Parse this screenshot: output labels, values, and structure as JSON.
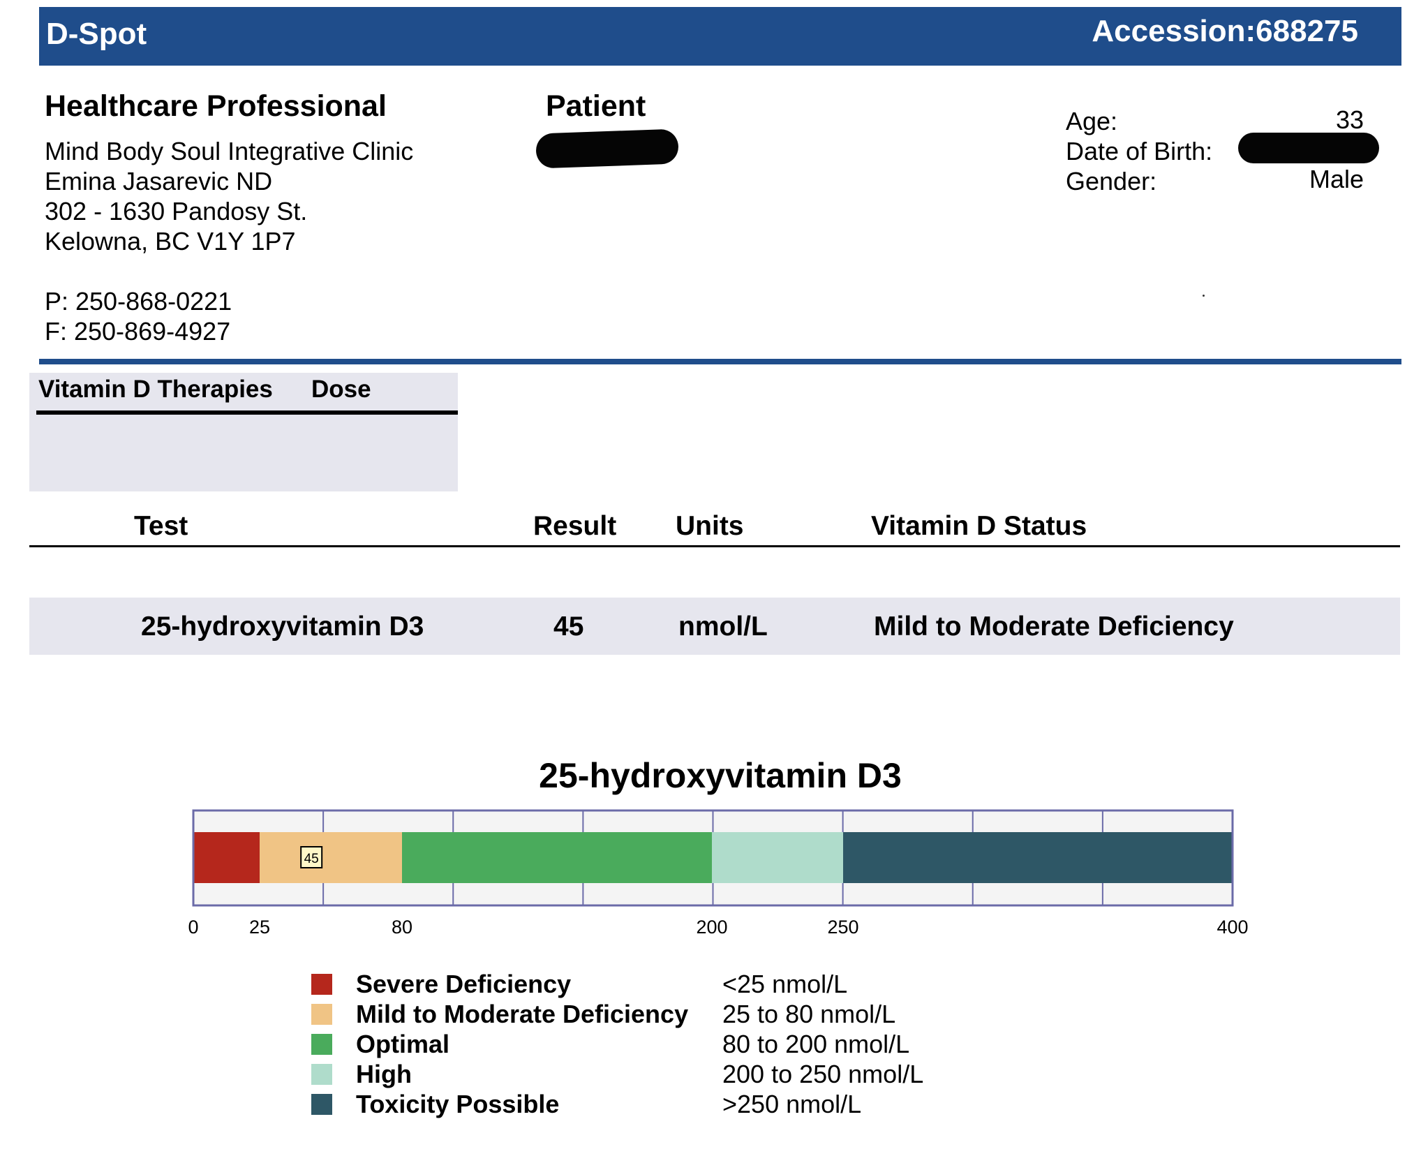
{
  "header": {
    "app_title": "D-Spot",
    "accession": "Accession:688275",
    "bar_color": "#1f4d8b"
  },
  "professional": {
    "heading": "Healthcare Professional",
    "clinic": "Mind Body Soul Integrative Clinic",
    "practitioner": "Emina Jasarevic ND",
    "address_line1": "302 - 1630 Pandosy St.",
    "address_line2": "Kelowna, BC V1Y 1P7",
    "phone": "P: 250-868-0221",
    "fax": "F: 250-869-4927"
  },
  "patient": {
    "heading": "Patient",
    "age_label": "Age:",
    "age_value": "33",
    "dob_label": "Date of Birth:",
    "gender_label": "Gender:",
    "gender_value": "Male"
  },
  "therapies": {
    "col_therapy": "Vitamin D Therapies",
    "col_dose": "Dose"
  },
  "results": {
    "headers": {
      "test": "Test",
      "result": "Result",
      "units": "Units",
      "status": "Vitamin D Status"
    },
    "rows": [
      {
        "test": "25-hydroxyvitamin D3",
        "result": "45",
        "units": "nmol/L",
        "status": "Mild to Moderate Deficiency"
      }
    ]
  },
  "chart_data": {
    "type": "bar",
    "title": "25-hydroxyvitamin D3",
    "xlim": [
      0,
      400
    ],
    "tick_labels": [
      "0",
      "25",
      "80",
      "200",
      "250",
      "400"
    ],
    "tick_values": [
      0,
      25,
      80,
      200,
      250,
      400
    ],
    "grid": true,
    "marker": {
      "value": 45,
      "label": "45"
    },
    "bands": [
      {
        "name": "Severe Deficiency",
        "range": "<25 nmol/L",
        "from": 0,
        "to": 25,
        "color": "#b5271c"
      },
      {
        "name": "Mild to Moderate Deficiency",
        "range": "25 to 80 nmol/L",
        "from": 25,
        "to": 80,
        "color": "#f0c485"
      },
      {
        "name": "Optimal",
        "range": "80 to 200 nmol/L",
        "from": 80,
        "to": 200,
        "color": "#4aab5c"
      },
      {
        "name": "High",
        "range": "200 to 250 nmol/L",
        "from": 200,
        "to": 250,
        "color": "#afdccb"
      },
      {
        "name": "Toxicity Possible",
        "range": ">250 nmol/L",
        "from": 250,
        "to": 400,
        "color": "#2e5766"
      }
    ]
  }
}
